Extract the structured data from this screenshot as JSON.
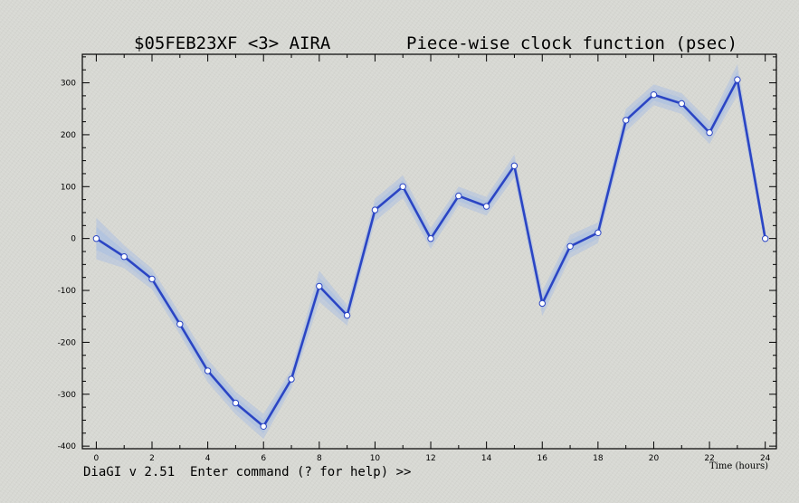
{
  "header": {
    "title_left": "$05FEB23XF <3>  AIRA",
    "title_right": "Piece-wise clock function (psec)"
  },
  "console": {
    "prompt": "DiaGI v 2.51  Enter command (? for help) >>"
  },
  "chart_data": {
    "type": "line",
    "title": "$05FEB23XF <3>  AIRA       Piece-wise clock function (psec)",
    "xlabel": "Time (hours)",
    "ylabel": "",
    "xlim": [
      -0.5,
      24.4
    ],
    "ylim": [
      -405,
      355
    ],
    "x_ticks": [
      0,
      2,
      4,
      6,
      8,
      10,
      12,
      14,
      16,
      18,
      20,
      22,
      24
    ],
    "y_ticks": [
      -400,
      -300,
      -200,
      -100,
      0,
      100,
      200,
      300
    ],
    "grid": false,
    "colors": {
      "line": "#2b45c4",
      "error_band": "#a6bde4",
      "marker_fill": "#ffffff"
    },
    "series": [
      {
        "x": [
          0,
          1,
          2,
          3,
          4,
          5,
          6,
          7,
          8,
          9,
          10,
          11,
          12,
          13,
          14,
          15,
          16,
          17,
          18,
          19,
          20,
          21,
          22,
          23,
          24
        ],
        "values": [
          0,
          -35,
          -78,
          -165,
          -255,
          -317,
          -362,
          -271,
          -92,
          -148,
          55,
          100,
          0,
          82,
          62,
          140,
          -125,
          -15,
          11,
          228,
          277,
          260,
          204,
          306,
          0
        ],
        "errors": [
          40,
          22,
          20,
          20,
          22,
          22,
          24,
          18,
          30,
          20,
          22,
          22,
          20,
          18,
          18,
          22,
          24,
          22,
          20,
          22,
          20,
          20,
          22,
          30,
          16
        ]
      }
    ]
  }
}
